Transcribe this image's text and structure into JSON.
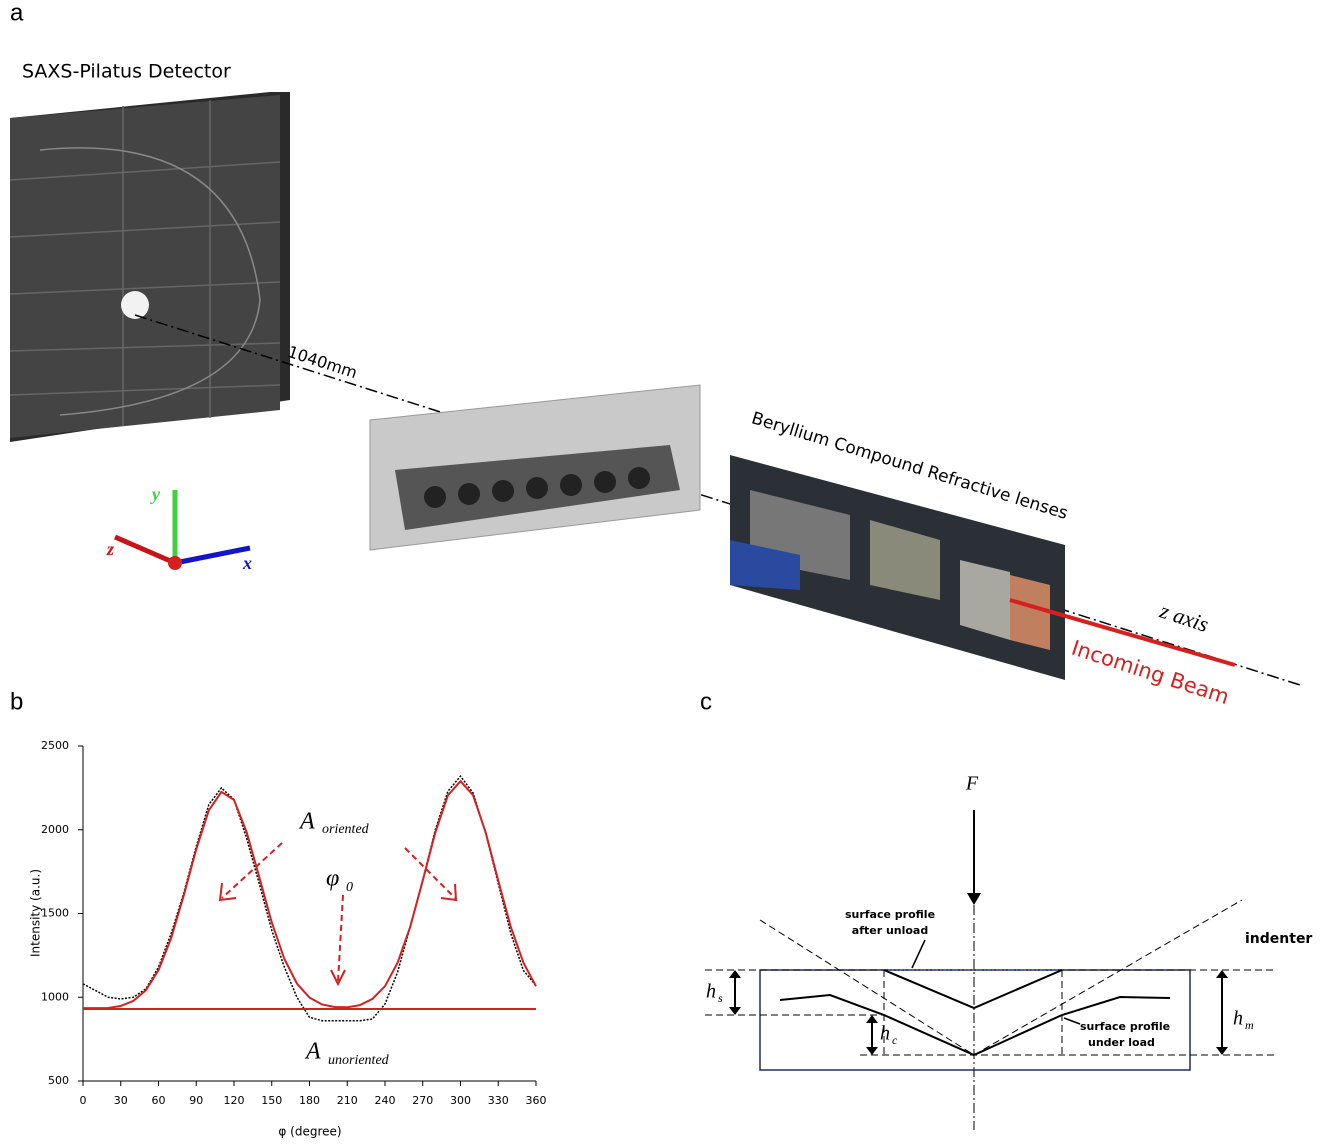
{
  "panel_a": {
    "label": "a",
    "detector": "SAXS-Pilatus Detector",
    "distance": "1040mm",
    "lenses": "Beryllium Compound Refractive lenses",
    "z_axis": "z axis",
    "beam": "Incoming Beam",
    "axes": {
      "x": "x",
      "y": "y",
      "z": "z"
    }
  },
  "chart_data": {
    "type": "line",
    "panel_label": "b",
    "xlabel": "φ (degree)",
    "ylabel": "Intensity (a.u.)",
    "xlim": [
      0,
      360
    ],
    "ylim": [
      500,
      2500
    ],
    "xticks": [
      0,
      30,
      60,
      90,
      120,
      150,
      180,
      210,
      240,
      270,
      300,
      330,
      360
    ],
    "yticks": [
      500,
      1000,
      1500,
      2000,
      2500
    ],
    "x": [
      0,
      10,
      20,
      30,
      40,
      50,
      60,
      70,
      80,
      90,
      100,
      110,
      120,
      130,
      140,
      150,
      160,
      170,
      180,
      190,
      200,
      210,
      220,
      230,
      240,
      250,
      260,
      270,
      280,
      290,
      300,
      310,
      320,
      330,
      340,
      350,
      360
    ],
    "series": [
      {
        "color": "#000000",
        "values": [
          1080,
          1040,
          1000,
          990,
          1000,
          1050,
          1180,
          1380,
          1620,
          1900,
          2150,
          2250,
          2180,
          1950,
          1680,
          1400,
          1180,
          1000,
          880,
          860,
          860,
          860,
          860,
          870,
          960,
          1150,
          1420,
          1700,
          2000,
          2230,
          2320,
          2220,
          1980,
          1680,
          1380,
          1160,
          1070
        ]
      },
      {
        "color": "#d62020",
        "values": [
          935,
          935,
          936,
          948,
          978,
          1042,
          1162,
          1352,
          1606,
          1884,
          2116,
          2226,
          2178,
          1987,
          1719,
          1447,
          1229,
          1082,
          998,
          957,
          942,
          940,
          953,
          990,
          1066,
          1206,
          1420,
          1696,
          1984,
          2206,
          2290,
          2206,
          1984,
          1696,
          1420,
          1206,
          1066
        ]
      },
      {
        "color": "#d62020",
        "values": [
          930,
          930,
          930,
          930,
          930,
          930,
          930,
          930,
          930,
          930,
          930,
          930,
          930,
          930,
          930,
          930,
          930,
          930,
          930,
          930,
          930,
          930,
          930,
          930,
          930,
          930,
          930,
          930,
          930,
          930,
          930,
          930,
          930,
          930,
          930,
          930,
          930
        ]
      }
    ],
    "annotations": [
      {
        "base": "A",
        "sub": "oriented"
      },
      {
        "base": "φ",
        "sub": "0"
      },
      {
        "base": "A",
        "sub": "unoriented"
      }
    ]
  },
  "panel_c": {
    "label": "c",
    "force": "F",
    "indenter": "indenter",
    "after_unload": [
      "surface profile",
      "after unload"
    ],
    "under_load": [
      "surface profile",
      "under load"
    ],
    "hs": {
      "base": "h",
      "sub": "s"
    },
    "hc": {
      "base": "h",
      "sub": "c"
    },
    "hm": {
      "base": "h",
      "sub": "m"
    }
  }
}
